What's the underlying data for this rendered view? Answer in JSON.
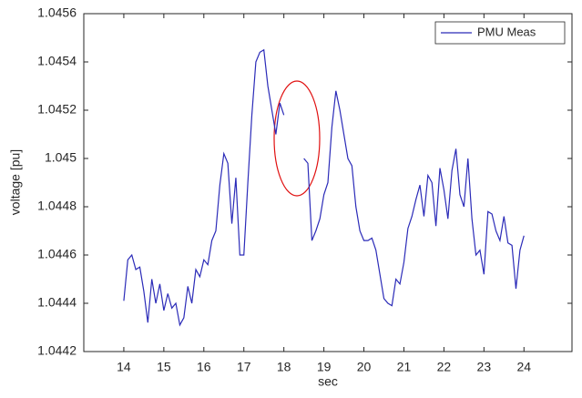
{
  "chart_data": {
    "type": "line",
    "xlabel": "sec",
    "ylabel": "voltage [pu]",
    "x": [
      14.0,
      14.1,
      14.2,
      14.3,
      14.4,
      14.5,
      14.6,
      14.7,
      14.8,
      14.9,
      15.0,
      15.1,
      15.2,
      15.3,
      15.4,
      15.5,
      15.6,
      15.7,
      15.8,
      15.9,
      16.0,
      16.1,
      16.2,
      16.3,
      16.4,
      16.5,
      16.6,
      16.7,
      16.8,
      16.9,
      17.0,
      17.1,
      17.2,
      17.3,
      17.4,
      17.5,
      17.6,
      17.7,
      17.8,
      17.9,
      18.0,
      18.1,
      18.2,
      18.3,
      18.4,
      18.5,
      18.6,
      18.7,
      18.8,
      18.9,
      19.0,
      19.1,
      19.2,
      19.3,
      19.4,
      19.5,
      19.6,
      19.7,
      19.8,
      19.9,
      20.0,
      20.1,
      20.2,
      20.3,
      20.4,
      20.5,
      20.6,
      20.7,
      20.8,
      20.9,
      21.0,
      21.1,
      21.2,
      21.3,
      21.4,
      21.5,
      21.6,
      21.7,
      21.8,
      21.9,
      22.0,
      22.1,
      22.2,
      22.3,
      22.4,
      22.5,
      22.6,
      22.7,
      22.8,
      22.9,
      23.0,
      23.1,
      23.2,
      23.3,
      23.4,
      23.5,
      23.6,
      23.7,
      23.8,
      23.9,
      24.0
    ],
    "series": [
      {
        "name": "PMU Meas",
        "color": "#2b2bb8",
        "values": [
          1.04441,
          1.04458,
          1.0446,
          1.04454,
          1.04455,
          1.04445,
          1.04432,
          1.0445,
          1.0444,
          1.04448,
          1.04437,
          1.04444,
          1.04438,
          1.0444,
          1.04431,
          1.04434,
          1.04447,
          1.0444,
          1.04454,
          1.04451,
          1.04458,
          1.04456,
          1.04466,
          1.0447,
          1.04489,
          1.04502,
          1.04498,
          1.04473,
          1.04492,
          1.0446,
          1.0446,
          1.0449,
          1.04518,
          1.0454,
          1.04544,
          1.04545,
          1.0453,
          1.0452,
          1.0451,
          1.04523,
          1.04518,
          null,
          null,
          null,
          null,
          1.045,
          1.04498,
          1.04466,
          1.0447,
          1.04475,
          1.04485,
          1.0449,
          1.04513,
          1.04528,
          1.0452,
          1.0451,
          1.045,
          1.04497,
          1.0448,
          1.0447,
          1.04466,
          1.04466,
          1.04467,
          1.04462,
          1.04452,
          1.04442,
          1.0444,
          1.04439,
          1.0445,
          1.04448,
          1.04457,
          1.04471,
          1.04476,
          1.04483,
          1.04489,
          1.04476,
          1.04493,
          1.0449,
          1.04472,
          1.04496,
          1.04487,
          1.04475,
          1.04495,
          1.04504,
          1.04485,
          1.0448,
          1.045,
          1.04475,
          1.0446,
          1.04462,
          1.04452,
          1.04478,
          1.04477,
          1.0447,
          1.04466,
          1.04476,
          1.04465,
          1.04464,
          1.04446,
          1.04462,
          1.04468
        ]
      }
    ],
    "xlim": [
      13,
      25.2
    ],
    "xticks": [
      14,
      15,
      16,
      17,
      18,
      19,
      20,
      21,
      22,
      23,
      24
    ],
    "ylim": [
      1.0442,
      1.0456
    ],
    "yticks": [
      1.0442,
      1.0444,
      1.0446,
      1.0448,
      1.045,
      1.0452,
      1.0454,
      1.0456
    ],
    "grid": false,
    "legend": "northeast"
  }
}
